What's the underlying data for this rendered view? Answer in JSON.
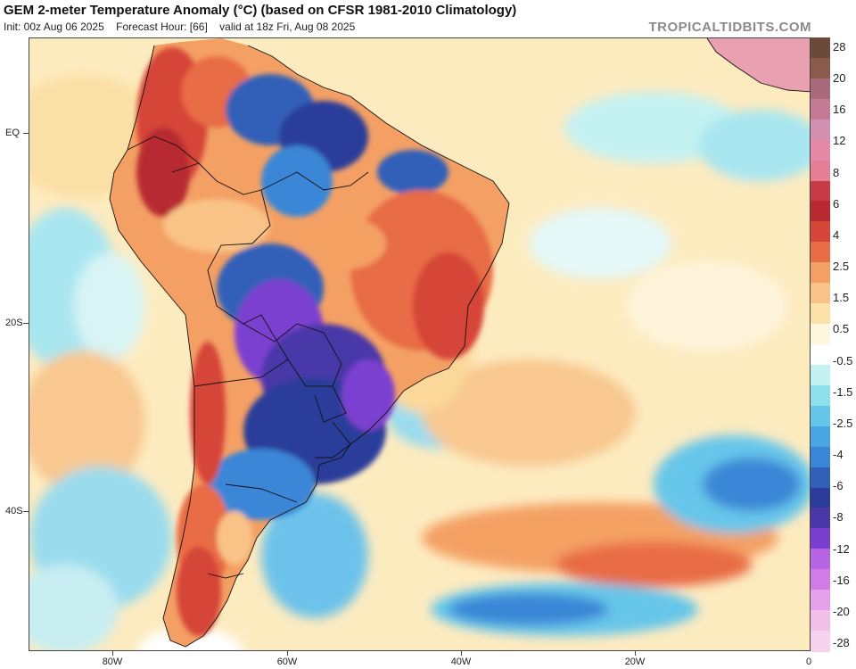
{
  "header": {
    "title": "GEM 2-meter Temperature Anomaly (°C) (based on CFSR 1981-2010 Climatology)",
    "init": "Init: 00z Aug 06 2025",
    "forecast_hour": "Forecast Hour: [66]",
    "valid": "valid at 18z Fri, Aug 08 2025",
    "watermark": "TROPICALTIDBITS.COM"
  },
  "map": {
    "lat_labels": [
      "EQ",
      "20S",
      "40S"
    ],
    "lon_labels": [
      "80W",
      "60W",
      "40W",
      "20W",
      "0"
    ]
  },
  "colorbar": {
    "labels": [
      "28",
      "20",
      "16",
      "12",
      "8",
      "6",
      "4",
      "2.5",
      "1.5",
      "0.5",
      "-0.5",
      "-1.5",
      "-2.5",
      "-4",
      "-6",
      "-8",
      "-12",
      "-16",
      "-20",
      "-28"
    ],
    "colors": [
      "#6b4a3a",
      "#8a5a4a",
      "#a86a7a",
      "#c47a94",
      "#d490b0",
      "#e48aa6",
      "#e77f94",
      "#c83a45",
      "#b82a30",
      "#d54538",
      "#e86c44",
      "#f4a064",
      "#f9c286",
      "#fce2a8",
      "#fff7dd",
      "#ffffff",
      "#c4f2f2",
      "#8ee0ec",
      "#66c6ea",
      "#4aa6e2",
      "#3a86d6",
      "#3160b8",
      "#2a3d9a",
      "#4a37a8",
      "#7b3fd0",
      "#b765e2",
      "#d27be6",
      "#e7a0ea",
      "#f2bfe6",
      "#f6d2ee"
    ]
  }
}
